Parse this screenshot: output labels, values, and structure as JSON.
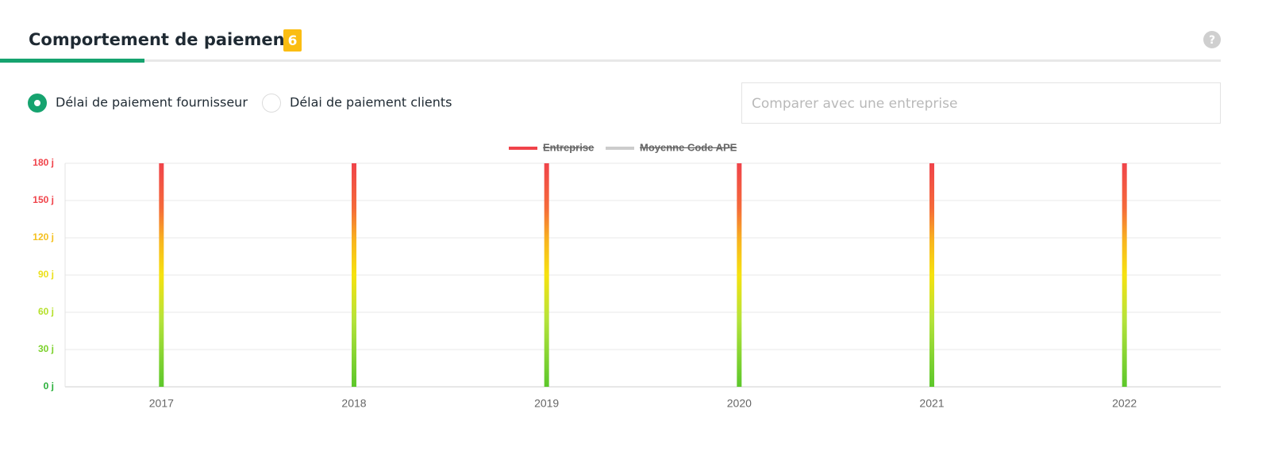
{
  "header": {
    "title": "Comportement de paiement",
    "badge": "6"
  },
  "options": [
    {
      "label": "Délai de paiement fournisseur",
      "selected": true
    },
    {
      "label": "Délai de paiement clients",
      "selected": false
    }
  ],
  "compare_input": {
    "placeholder": "Comparer avec une entreprise"
  },
  "chart_data": {
    "type": "bar",
    "categories": [
      "2017",
      "2018",
      "2019",
      "2020",
      "2021",
      "2022"
    ],
    "series": [
      {
        "name": "Entreprise",
        "color": "#f0434a",
        "values": [
          180,
          180,
          180,
          180,
          180,
          180
        ]
      },
      {
        "name": "Moyenne Code APE",
        "color": "#cccccc",
        "values": [
          null,
          null,
          null,
          null,
          null,
          null
        ]
      }
    ],
    "ylim": [
      0,
      180
    ],
    "yticks": [
      {
        "value": 0,
        "label": "0 j"
      },
      {
        "value": 30,
        "label": "30 j"
      },
      {
        "value": 60,
        "label": "60 j"
      },
      {
        "value": 90,
        "label": "90 j"
      },
      {
        "value": 120,
        "label": "120 j"
      },
      {
        "value": 150,
        "label": "150 j"
      },
      {
        "value": 180,
        "label": "180 j"
      }
    ],
    "ytick_colors": [
      "#2ab03b",
      "#7bd12a",
      "#b5e02a",
      "#ece11a",
      "#f4c020",
      "#f0434a",
      "#f0434a"
    ],
    "grid": true,
    "legend": "top"
  }
}
